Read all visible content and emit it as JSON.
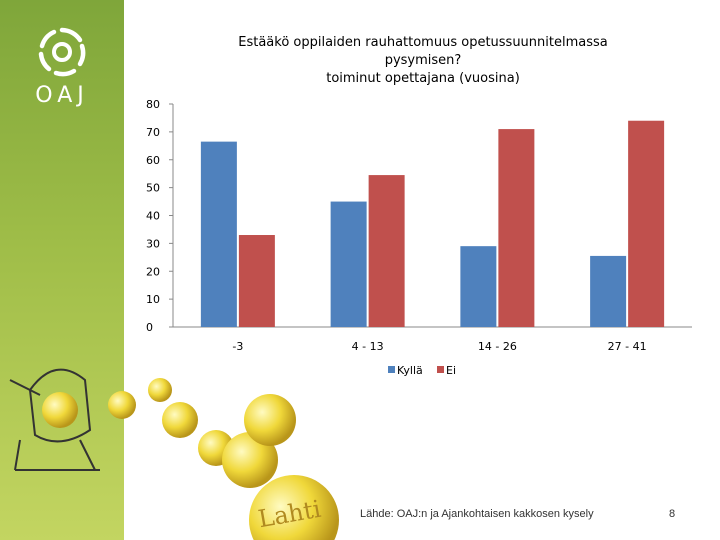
{
  "brand": {
    "logo_text": "OAJ",
    "deco_text": "Lahti"
  },
  "footer": {
    "source": "Lähde: OAJ:n ja Ajankohtaisen kakkosen kysely",
    "page": "8"
  },
  "colors": {
    "sidebar": "#8fb43f",
    "series1": "#4f81bd",
    "series2": "#c0504d"
  },
  "chart_data": {
    "type": "bar",
    "title": [
      "Estääkö oppilaiden rauhattomuus opetussuunnitelmassa",
      "pysymisen?",
      "toiminut opettajana (vuosina)"
    ],
    "categories": [
      "-3",
      "4 - 13",
      "14 - 26",
      "27 - 41"
    ],
    "series": [
      {
        "name": "Kyllä",
        "values": [
          66.5,
          45,
          29,
          25.5
        ]
      },
      {
        "name": "Ei",
        "values": [
          33,
          54.5,
          71,
          74
        ]
      }
    ],
    "ylim": [
      0,
      80
    ],
    "yticks": [
      0,
      10,
      20,
      30,
      40,
      50,
      60,
      70,
      80
    ],
    "grid": false,
    "legend": "bottom"
  }
}
